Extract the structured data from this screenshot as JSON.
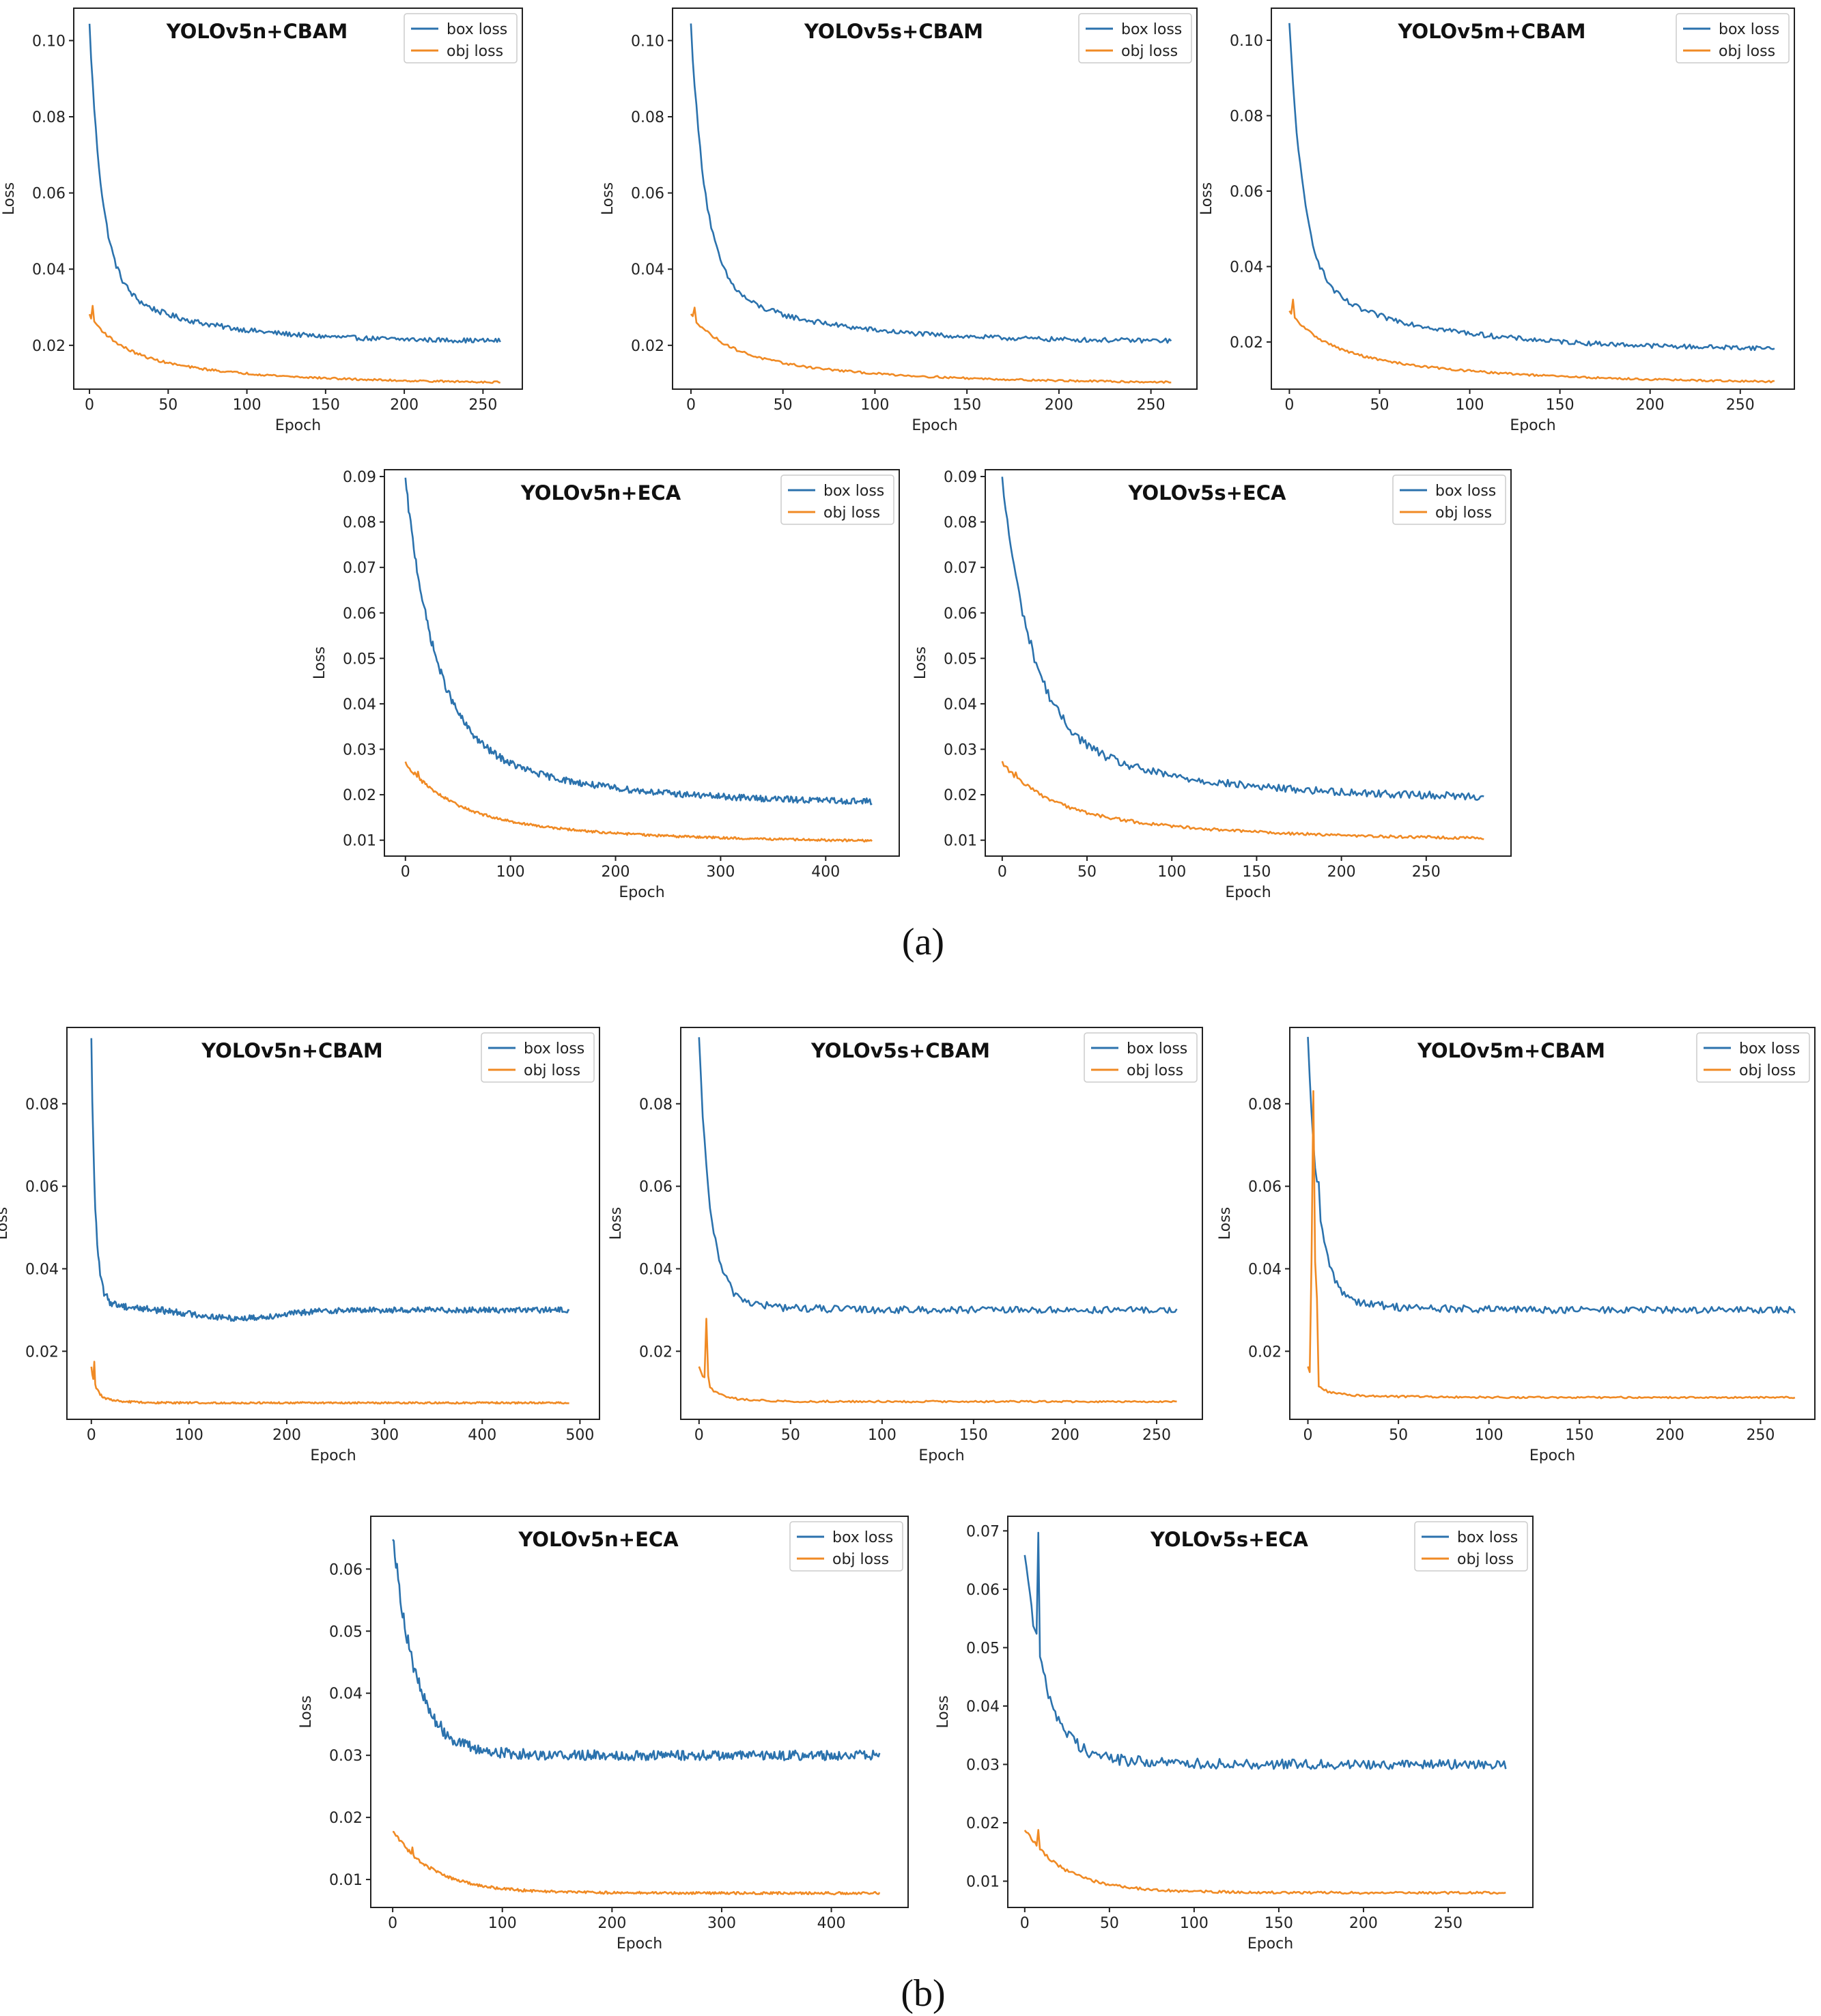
{
  "captions": {
    "a": "(a)",
    "b": "(b)"
  },
  "colors": {
    "box_loss": "#2b72ad",
    "obj_loss": "#f08a24",
    "axes": "#222222"
  },
  "chart_data": [
    {
      "id": "a1",
      "type": "line",
      "title": "YOLOv5n+CBAM",
      "xlabel": "Epoch",
      "ylabel": "Loss",
      "xlim": [
        -10,
        275
      ],
      "ylim": [
        0.0085,
        0.1085
      ],
      "xticks": [
        0,
        50,
        100,
        150,
        200,
        250
      ],
      "yticks": [
        0.02,
        0.04,
        0.06,
        0.08,
        0.1
      ],
      "ytick_labels": [
        "0.02",
        "0.04",
        "0.06",
        "0.08",
        "0.10"
      ],
      "legend": "top-right",
      "series": [
        {
          "name": "box loss",
          "color": "box_loss",
          "n": 262,
          "start": 0.104,
          "final": 0.021,
          "tau": 8,
          "mid": 0.037,
          "tau2": 60,
          "noise": 0.0006
        },
        {
          "name": "obj loss",
          "color": "obj_loss",
          "n": 262,
          "start": 0.028,
          "final": 0.01,
          "tau": 18,
          "mid": 0.019,
          "tau2": 80,
          "noise": 0.00025,
          "peak_x": 2,
          "peak": 0.03
        }
      ]
    },
    {
      "id": "a2",
      "type": "line",
      "title": "YOLOv5s+CBAM",
      "xlabel": "Epoch",
      "ylabel": "Loss",
      "xlim": [
        -10,
        275
      ],
      "ylim": [
        0.0085,
        0.1085
      ],
      "xticks": [
        0,
        50,
        100,
        150,
        200,
        250
      ],
      "yticks": [
        0.02,
        0.04,
        0.06,
        0.08,
        0.1
      ],
      "ytick_labels": [
        "0.02",
        "0.04",
        "0.06",
        "0.08",
        "0.10"
      ],
      "legend": "top-right",
      "series": [
        {
          "name": "box loss",
          "color": "box_loss",
          "n": 262,
          "start": 0.104,
          "final": 0.021,
          "tau": 8,
          "mid": 0.037,
          "tau2": 60,
          "noise": 0.0006
        },
        {
          "name": "obj loss",
          "color": "obj_loss",
          "n": 262,
          "start": 0.028,
          "final": 0.01,
          "tau": 18,
          "mid": 0.019,
          "tau2": 80,
          "noise": 0.00025,
          "peak_x": 2,
          "peak": 0.03
        }
      ]
    },
    {
      "id": "a3",
      "type": "line",
      "title": "YOLOv5m+CBAM",
      "xlabel": "Epoch",
      "ylabel": "Loss",
      "xlim": [
        -10,
        280
      ],
      "ylim": [
        0.0075,
        0.1085
      ],
      "xticks": [
        0,
        50,
        100,
        150,
        200,
        250
      ],
      "yticks": [
        0.02,
        0.04,
        0.06,
        0.08,
        0.1
      ],
      "ytick_labels": [
        "0.02",
        "0.04",
        "0.06",
        "0.08",
        "0.10"
      ],
      "legend": "top-right",
      "series": [
        {
          "name": "box loss",
          "color": "box_loss",
          "n": 270,
          "start": 0.104,
          "final": 0.018,
          "tau": 8,
          "mid": 0.036,
          "tau2": 70,
          "noise": 0.0006
        },
        {
          "name": "obj loss",
          "color": "obj_loss",
          "n": 270,
          "start": 0.028,
          "final": 0.009,
          "tau": 18,
          "mid": 0.019,
          "tau2": 90,
          "noise": 0.00025,
          "peak_x": 2,
          "peak": 0.031
        }
      ]
    },
    {
      "id": "a4",
      "type": "line",
      "title": "YOLOv5n+ECA",
      "xlabel": "Epoch",
      "ylabel": "Loss",
      "xlim": [
        -20,
        470
      ],
      "ylim": [
        0.0065,
        0.0915
      ],
      "xticks": [
        0,
        100,
        200,
        300,
        400
      ],
      "yticks": [
        0.01,
        0.02,
        0.03,
        0.04,
        0.05,
        0.06,
        0.07,
        0.08,
        0.09
      ],
      "ytick_labels": [
        "0.01",
        "0.02",
        "0.03",
        "0.04",
        "0.05",
        "0.06",
        "0.07",
        "0.08",
        "0.09"
      ],
      "legend": "top-right",
      "series": [
        {
          "name": "box loss",
          "color": "box_loss",
          "n": 445,
          "start": 0.089,
          "final": 0.018,
          "tau": 28,
          "mid": 0.034,
          "tau2": 130,
          "noise": 0.0007,
          "bump_x": 3,
          "bump": 0.075
        },
        {
          "name": "obj loss",
          "color": "obj_loss",
          "n": 445,
          "start": 0.027,
          "final": 0.0095,
          "tau": 40,
          "mid": 0.017,
          "tau2": 150,
          "noise": 0.00025,
          "peak_x": 12,
          "peak": 0.025
        }
      ]
    },
    {
      "id": "a5",
      "type": "line",
      "title": "YOLOv5s+ECA",
      "xlabel": "Epoch",
      "ylabel": "Loss",
      "xlim": [
        -10,
        300
      ],
      "ylim": [
        0.0065,
        0.0915
      ],
      "xticks": [
        0,
        50,
        100,
        150,
        200,
        250
      ],
      "yticks": [
        0.01,
        0.02,
        0.03,
        0.04,
        0.05,
        0.06,
        0.07,
        0.08,
        0.09
      ],
      "ytick_labels": [
        "0.01",
        "0.02",
        "0.03",
        "0.04",
        "0.05",
        "0.06",
        "0.07",
        "0.08",
        "0.09"
      ],
      "legend": "top-right",
      "series": [
        {
          "name": "box loss",
          "color": "box_loss",
          "n": 285,
          "start": 0.089,
          "final": 0.019,
          "tau": 18,
          "mid": 0.034,
          "tau2": 90,
          "noise": 0.0008,
          "bump_x": 3,
          "bump": 0.075
        },
        {
          "name": "obj loss",
          "color": "obj_loss",
          "n": 285,
          "start": 0.027,
          "final": 0.01,
          "tau": 25,
          "mid": 0.018,
          "tau2": 100,
          "noise": 0.0003,
          "peak_x": 8,
          "peak": 0.025
        }
      ]
    },
    {
      "id": "b1",
      "type": "line",
      "title": "YOLOv5n+CBAM",
      "xlabel": "Epoch",
      "ylabel": "Loss",
      "xlim": [
        -25,
        520
      ],
      "ylim": [
        0.0035,
        0.0985
      ],
      "xticks": [
        0,
        100,
        200,
        300,
        400,
        500
      ],
      "yticks": [
        0.02,
        0.04,
        0.06,
        0.08
      ],
      "ytick_labels": [
        "0.02",
        "0.04",
        "0.06",
        "0.08"
      ],
      "legend": "top-right",
      "series": [
        {
          "name": "box loss",
          "color": "box_loss",
          "n": 490,
          "start": 0.095,
          "final": 0.03,
          "tau": 4,
          "mid": 0.033,
          "tau2": 30,
          "noise": 0.0007,
          "dip": 0.028,
          "dip_x": 150
        },
        {
          "name": "obj loss",
          "color": "obj_loss",
          "n": 490,
          "start": 0.016,
          "final": 0.0075,
          "tau": 5,
          "mid": 0.009,
          "tau2": 20,
          "noise": 0.0002,
          "peak_x": 3,
          "peak": 0.0175
        }
      ]
    },
    {
      "id": "b2",
      "type": "line",
      "title": "YOLOv5s+CBAM",
      "xlabel": "Epoch",
      "ylabel": "Loss",
      "xlim": [
        -10,
        275
      ],
      "ylim": [
        0.0035,
        0.0985
      ],
      "xticks": [
        0,
        50,
        100,
        150,
        200,
        250
      ],
      "yticks": [
        0.02,
        0.04,
        0.06,
        0.08
      ],
      "ytick_labels": [
        "0.02",
        "0.04",
        "0.06",
        "0.08"
      ],
      "legend": "top-right",
      "series": [
        {
          "name": "box loss",
          "color": "box_loss",
          "n": 262,
          "start": 0.095,
          "final": 0.03,
          "tau": 6,
          "mid": 0.034,
          "tau2": 25,
          "noise": 0.0008
        },
        {
          "name": "obj loss",
          "color": "obj_loss",
          "n": 262,
          "start": 0.016,
          "final": 0.0078,
          "tau": 6,
          "mid": 0.009,
          "tau2": 20,
          "noise": 0.0002,
          "peak_x": 4,
          "peak": 0.028
        }
      ]
    },
    {
      "id": "b3",
      "type": "line",
      "title": "YOLOv5m+CBAM",
      "xlabel": "Epoch",
      "ylabel": "Loss",
      "xlim": [
        -10,
        280
      ],
      "ylim": [
        0.0035,
        0.0985
      ],
      "xticks": [
        0,
        50,
        100,
        150,
        200,
        250
      ],
      "yticks": [
        0.02,
        0.04,
        0.06,
        0.08
      ],
      "ytick_labels": [
        "0.02",
        "0.04",
        "0.06",
        "0.08"
      ],
      "legend": "top-right",
      "series": [
        {
          "name": "box loss",
          "color": "box_loss",
          "n": 270,
          "start": 0.095,
          "final": 0.03,
          "tau": 6,
          "mid": 0.034,
          "tau2": 30,
          "noise": 0.0008,
          "peak_x": 6,
          "peak": 0.06
        },
        {
          "name": "obj loss",
          "color": "obj_loss",
          "n": 270,
          "start": 0.016,
          "final": 0.0088,
          "tau": 5,
          "mid": 0.01,
          "tau2": 30,
          "noise": 0.0002,
          "peak_x": 3,
          "peak": 0.083,
          "peak2_x": 5,
          "peak2": 0.033
        }
      ]
    },
    {
      "id": "b4",
      "type": "line",
      "title": "YOLOv5n+ECA",
      "xlabel": "Epoch",
      "ylabel": "Loss",
      "xlim": [
        -20,
        470
      ],
      "ylim": [
        0.0055,
        0.0685
      ],
      "xticks": [
        0,
        100,
        200,
        300,
        400
      ],
      "yticks": [
        0.01,
        0.02,
        0.03,
        0.04,
        0.05,
        0.06
      ],
      "ytick_labels": [
        "0.01",
        "0.02",
        "0.03",
        "0.04",
        "0.05",
        "0.06"
      ],
      "legend": "top-right",
      "series": [
        {
          "name": "box loss",
          "color": "box_loss",
          "n": 445,
          "start": 0.066,
          "final": 0.03,
          "tau": 20,
          "mid": 0.032,
          "tau2": 40,
          "noise": 0.0008,
          "bump_x": 2,
          "bump": 0.063
        },
        {
          "name": "obj loss",
          "color": "obj_loss",
          "n": 445,
          "start": 0.018,
          "final": 0.0078,
          "tau": 35,
          "mid": 0.009,
          "tau2": 60,
          "noise": 0.0002,
          "peak_x": 18,
          "peak": 0.015
        }
      ]
    },
    {
      "id": "b5",
      "type": "line",
      "title": "YOLOv5s+ECA",
      "xlabel": "Epoch",
      "ylabel": "Loss",
      "xlim": [
        -10,
        300
      ],
      "ylim": [
        0.0055,
        0.0725
      ],
      "xticks": [
        0,
        50,
        100,
        150,
        200,
        250
      ],
      "yticks": [
        0.01,
        0.02,
        0.03,
        0.04,
        0.05,
        0.06,
        0.07
      ],
      "ytick_labels": [
        "0.01",
        "0.02",
        "0.03",
        "0.04",
        "0.05",
        "0.06",
        "0.07"
      ],
      "legend": "top-right",
      "series": [
        {
          "name": "box loss",
          "color": "box_loss",
          "n": 285,
          "start": 0.067,
          "final": 0.03,
          "tau": 12,
          "mid": 0.032,
          "tau2": 40,
          "noise": 0.0008,
          "peak_x": 8,
          "peak": 0.07
        },
        {
          "name": "obj loss",
          "color": "obj_loss",
          "n": 285,
          "start": 0.019,
          "final": 0.008,
          "tau": 22,
          "mid": 0.009,
          "tau2": 50,
          "noise": 0.0002,
          "peak_x": 8,
          "peak": 0.019
        }
      ]
    }
  ]
}
